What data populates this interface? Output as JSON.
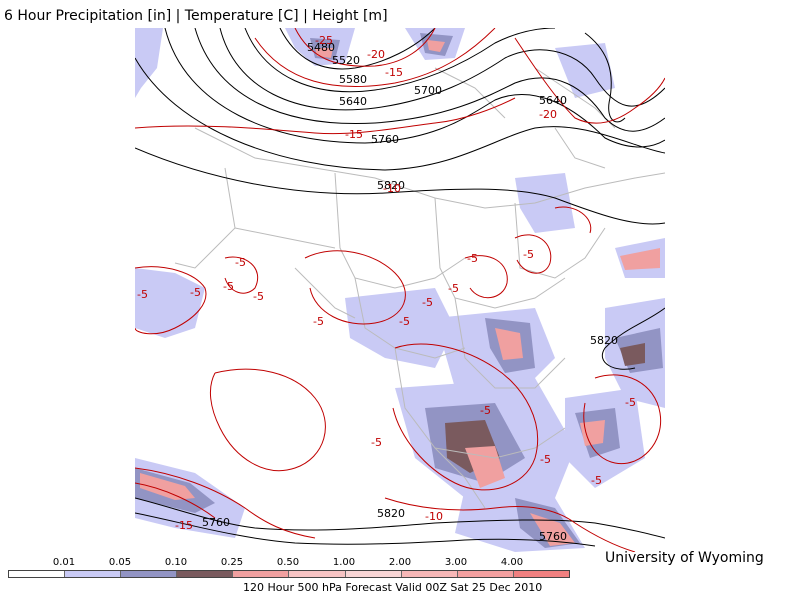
{
  "title": "6 Hour Precipitation [in] | Temperature [C] | Height [m]",
  "credit": "University of Wyoming",
  "footer": "120 Hour 500 hPa Forecast Valid 00Z Sat 25 Dec 2010",
  "legend": {
    "labels": [
      "0.01",
      "0.05",
      "0.10",
      "0.25",
      "0.50",
      "1.00",
      "2.00",
      "3.00",
      "4.00"
    ],
    "colors": [
      "#ffffff",
      "#c9caf5",
      "#9294c4",
      "#7a5a5e",
      "#f0a0a0",
      "#f7c4c4",
      "#f9d6d6",
      "#f6b7b7",
      "#f3a0a0",
      "#f08080"
    ]
  },
  "height_labels": [
    "5480",
    "5520",
    "5580",
    "5640",
    "5700",
    "5760",
    "5820",
    "5640",
    "5820",
    "5820",
    "5760",
    "5760"
  ],
  "temperature_labels": [
    "-25",
    "-20",
    "-15",
    "-15",
    "-20",
    "-10",
    "-5",
    "-5",
    "-5",
    "-5",
    "-5",
    "-5",
    "-5",
    "-5",
    "-5",
    "-5",
    "-5",
    "-5",
    "-5",
    "-5",
    "-5",
    "-5",
    "-10",
    "-15"
  ],
  "colors": {
    "height_contour": "#000000",
    "temperature_contour": "#c00000",
    "borders": "#bbbbbb",
    "precip_light": "#c9caf5",
    "precip_mid": "#9294c4",
    "precip_heavy": "#7a5a5e",
    "precip_pink": "#f0a0a0"
  }
}
